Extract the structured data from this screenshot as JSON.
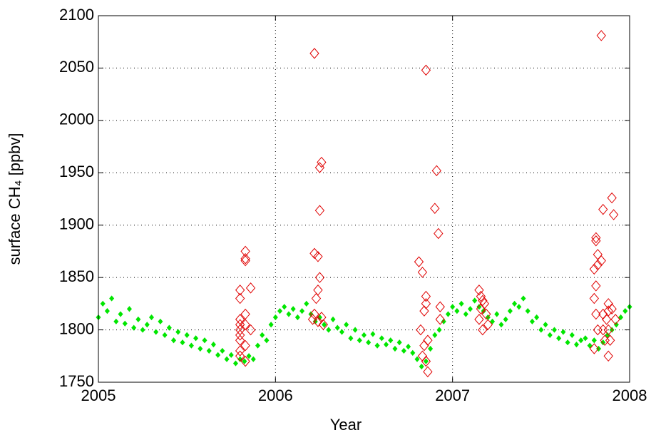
{
  "chart_data": {
    "type": "scatter",
    "xlabel": "Year",
    "ylabel": "surface CH₄ [ppbv]",
    "xlim": [
      2005,
      2008
    ],
    "xticks": [
      2005,
      2006,
      2007,
      2008
    ],
    "ylim": [
      1750,
      2100
    ],
    "yticks": [
      1750,
      1800,
      1850,
      1900,
      1950,
      2000,
      2050,
      2100
    ],
    "grid": true,
    "series": [
      {
        "color": "#00e600",
        "marker": "filled-diamond",
        "x": [
          2005.0,
          2005.025,
          2005.05,
          2005.075,
          2005.1,
          2005.125,
          2005.15,
          2005.175,
          2005.2,
          2005.225,
          2005.25,
          2005.275,
          2005.3,
          2005.325,
          2005.35,
          2005.375,
          2005.4,
          2005.425,
          2005.45,
          2005.475,
          2005.5,
          2005.525,
          2005.55,
          2005.575,
          2005.6,
          2005.625,
          2005.65,
          2005.675,
          2005.7,
          2005.725,
          2005.75,
          2005.775,
          2005.8,
          2005.825,
          2005.85,
          2005.875,
          2005.9,
          2005.925,
          2005.95,
          2005.975,
          2006.0,
          2006.025,
          2006.05,
          2006.075,
          2006.1,
          2006.125,
          2006.15,
          2006.175,
          2006.2,
          2006.225,
          2006.25,
          2006.275,
          2006.3,
          2006.325,
          2006.35,
          2006.375,
          2006.4,
          2006.425,
          2006.45,
          2006.475,
          2006.5,
          2006.525,
          2006.55,
          2006.575,
          2006.6,
          2006.625,
          2006.65,
          2006.675,
          2006.7,
          2006.725,
          2006.75,
          2006.775,
          2006.8,
          2006.825,
          2006.85,
          2006.875,
          2006.9,
          2006.925,
          2006.95,
          2006.975,
          2007.0,
          2007.025,
          2007.05,
          2007.075,
          2007.1,
          2007.125,
          2007.15,
          2007.175,
          2007.2,
          2007.225,
          2007.25,
          2007.275,
          2007.3,
          2007.325,
          2007.35,
          2007.375,
          2007.4,
          2007.425,
          2007.45,
          2007.475,
          2007.5,
          2007.525,
          2007.55,
          2007.575,
          2007.6,
          2007.625,
          2007.65,
          2007.675,
          2007.7,
          2007.725,
          2007.75,
          2007.775,
          2007.8,
          2007.825,
          2007.85,
          2007.875,
          2007.9,
          2007.925,
          2007.95,
          2007.975,
          2008.0
        ],
        "values": [
          1812,
          1825,
          1818,
          1830,
          1808,
          1815,
          1806,
          1820,
          1802,
          1810,
          1800,
          1805,
          1812,
          1798,
          1808,
          1795,
          1802,
          1790,
          1798,
          1788,
          1795,
          1785,
          1792,
          1782,
          1790,
          1780,
          1786,
          1776,
          1780,
          1772,
          1776,
          1768,
          1772,
          1770,
          1775,
          1772,
          1785,
          1795,
          1790,
          1805,
          1812,
          1818,
          1822,
          1815,
          1820,
          1812,
          1818,
          1825,
          1815,
          1808,
          1812,
          1805,
          1800,
          1810,
          1802,
          1798,
          1805,
          1792,
          1800,
          1790,
          1795,
          1788,
          1796,
          1785,
          1792,
          1786,
          1790,
          1782,
          1788,
          1780,
          1784,
          1778,
          1772,
          1765,
          1770,
          1782,
          1795,
          1800,
          1808,
          1815,
          1822,
          1818,
          1825,
          1815,
          1820,
          1828,
          1822,
          1818,
          1812,
          1808,
          1815,
          1805,
          1810,
          1818,
          1825,
          1822,
          1830,
          1818,
          1808,
          1812,
          1800,
          1805,
          1795,
          1800,
          1792,
          1798,
          1788,
          1795,
          1786,
          1790,
          1792,
          1785,
          1790,
          1782,
          1788,
          1795,
          1800,
          1805,
          1812,
          1818,
          1822
        ]
      },
      {
        "color": "#e00000",
        "marker": "open-diamond",
        "x": [
          2005.8,
          2005.8,
          2005.8,
          2005.8,
          2005.8,
          2005.8,
          2005.8,
          2005.8,
          2005.8,
          2005.83,
          2005.83,
          2005.83,
          2005.83,
          2005.83,
          2005.83,
          2005.83,
          2005.86,
          2005.86,
          2006.22,
          2006.26,
          2006.25,
          2006.25,
          2006.22,
          2006.24,
          2006.25,
          2006.24,
          2006.23,
          2006.22,
          2006.21,
          2006.24,
          2006.26,
          2006.27,
          2006.85,
          2006.81,
          2006.83,
          2006.85,
          2006.85,
          2006.84,
          2006.82,
          2006.86,
          2006.84,
          2006.83,
          2006.85,
          2006.86,
          2006.9,
          2006.91,
          2006.92,
          2006.93,
          2006.93,
          2007.15,
          2007.16,
          2007.17,
          2007.18,
          2007.16,
          2007.19,
          2007.15,
          2007.2,
          2007.17,
          2007.84,
          2007.81,
          2007.81,
          2007.82,
          2007.82,
          2007.8,
          2007.81,
          2007.8,
          2007.81,
          2007.82,
          2007.8,
          2007.85,
          2007.84,
          2007.85,
          2007.85,
          2007.86,
          2007.88,
          2007.88,
          2007.87,
          2007.88,
          2007.89,
          2007.88,
          2007.9,
          2007.91,
          2007.9,
          2007.92
        ],
        "values": [
          1830,
          1838,
          1805,
          1800,
          1790,
          1775,
          1780,
          1795,
          1810,
          1868,
          1875,
          1866,
          1815,
          1805,
          1785,
          1770,
          1840,
          1800,
          2064,
          1960,
          1955,
          1914,
          1873,
          1870,
          1850,
          1838,
          1830,
          1815,
          1810,
          1808,
          1812,
          1805,
          2048,
          1865,
          1855,
          1832,
          1825,
          1818,
          1800,
          1790,
          1785,
          1775,
          1770,
          1760,
          1916,
          1952,
          1892,
          1822,
          1810,
          1838,
          1832,
          1828,
          1825,
          1820,
          1815,
          1810,
          1805,
          1800,
          2081,
          1888,
          1885,
          1872,
          1862,
          1858,
          1842,
          1830,
          1815,
          1800,
          1782,
          1915,
          1866,
          1815,
          1800,
          1790,
          1825,
          1818,
          1810,
          1800,
          1790,
          1775,
          1926,
          1910,
          1820,
          1810
        ]
      }
    ]
  }
}
